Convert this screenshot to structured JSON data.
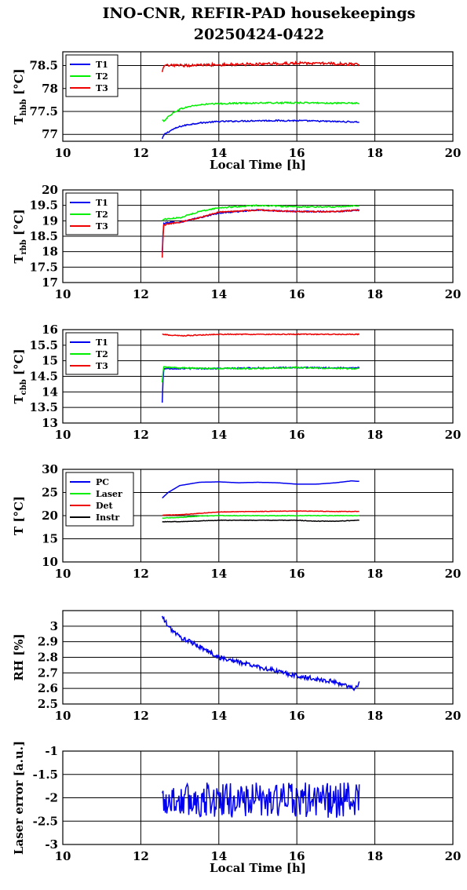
{
  "title": {
    "line1": "INO-CNR, REFIR-PAD housekeepings",
    "line2": "20250424-0422"
  },
  "colors": {
    "blue": "#0000ee",
    "green": "#00ee00",
    "red": "#ee0000",
    "black": "#000000"
  },
  "chart_data": [
    {
      "id": "hbb",
      "type": "line",
      "ylabel": "T",
      "ylabel_sub": "hbb",
      "ylabel_unit": "[°C]",
      "xlabel": "Local Time [h]",
      "xlim": [
        10,
        20
      ],
      "ylim": [
        76.85,
        78.8
      ],
      "xticks": [
        "10",
        "12",
        "14",
        "16",
        "18",
        "20"
      ],
      "yticks": [
        {
          "v": 77,
          "t": "77"
        },
        {
          "v": 77.5,
          "t": "77.5"
        },
        {
          "v": 78,
          "t": "78"
        },
        {
          "v": 78.5,
          "t": "78.5"
        }
      ],
      "legend": "top-left",
      "grid": true,
      "series": [
        {
          "name": "T1",
          "color": "blue",
          "pts": [
            [
              12.55,
              76.9
            ],
            [
              12.6,
              77.0
            ],
            [
              12.7,
              77.05
            ],
            [
              12.8,
              77.1
            ],
            [
              13.0,
              77.17
            ],
            [
              13.2,
              77.21
            ],
            [
              13.5,
              77.25
            ],
            [
              14.0,
              77.28
            ],
            [
              15.0,
              77.3
            ],
            [
              16.0,
              77.3
            ],
            [
              17.0,
              77.28
            ],
            [
              17.6,
              77.27
            ]
          ],
          "noise": 0.015
        },
        {
          "name": "T2",
          "color": "green",
          "pts": [
            [
              12.55,
              77.3
            ],
            [
              12.6,
              77.3
            ],
            [
              12.7,
              77.38
            ],
            [
              12.8,
              77.45
            ],
            [
              13.0,
              77.55
            ],
            [
              13.3,
              77.62
            ],
            [
              13.7,
              77.66
            ],
            [
              14.5,
              77.68
            ],
            [
              16.0,
              77.69
            ],
            [
              17.0,
              77.68
            ],
            [
              17.6,
              77.68
            ]
          ],
          "noise": 0.015
        },
        {
          "name": "T3",
          "color": "red",
          "pts": [
            [
              12.55,
              78.35
            ],
            [
              12.6,
              78.5
            ],
            [
              13.0,
              78.5
            ],
            [
              14.0,
              78.52
            ],
            [
              15.0,
              78.53
            ],
            [
              16.0,
              78.55
            ],
            [
              17.0,
              78.54
            ],
            [
              17.6,
              78.52
            ]
          ],
          "noise": 0.03
        }
      ]
    },
    {
      "id": "rbb",
      "type": "line",
      "ylabel": "T",
      "ylabel_sub": "rbb",
      "ylabel_unit": "[°C]",
      "xlabel": "",
      "xlim": [
        10,
        20
      ],
      "ylim": [
        17,
        20
      ],
      "xticks": [
        "10",
        "12",
        "14",
        "16",
        "18",
        "20"
      ],
      "yticks": [
        {
          "v": 17,
          "t": "17"
        },
        {
          "v": 17.5,
          "t": "17.5"
        },
        {
          "v": 18,
          "t": "18"
        },
        {
          "v": 18.5,
          "t": "18.5"
        },
        {
          "v": 19,
          "t": "19"
        },
        {
          "v": 19.5,
          "t": "19.5"
        },
        {
          "v": 20,
          "t": "20"
        }
      ],
      "legend": "top-left",
      "grid": true,
      "series": [
        {
          "name": "T1",
          "color": "blue",
          "pts": [
            [
              12.55,
              17.95
            ],
            [
              12.58,
              18.9
            ],
            [
              12.7,
              18.95
            ],
            [
              13.0,
              18.95
            ],
            [
              13.5,
              19.1
            ],
            [
              14.0,
              19.25
            ],
            [
              15.0,
              19.35
            ],
            [
              16.0,
              19.3
            ],
            [
              17.0,
              19.3
            ],
            [
              17.6,
              19.35
            ]
          ],
          "noise": 0.02
        },
        {
          "name": "T2",
          "color": "green",
          "pts": [
            [
              12.55,
              19.0
            ],
            [
              12.58,
              19.05
            ],
            [
              13.0,
              19.1
            ],
            [
              13.5,
              19.3
            ],
            [
              14.0,
              19.42
            ],
            [
              15.0,
              19.5
            ],
            [
              16.0,
              19.45
            ],
            [
              17.0,
              19.45
            ],
            [
              17.6,
              19.5
            ]
          ],
          "noise": 0.02
        },
        {
          "name": "T3",
          "color": "red",
          "pts": [
            [
              12.55,
              17.8
            ],
            [
              12.58,
              18.85
            ],
            [
              12.7,
              18.9
            ],
            [
              13.0,
              18.95
            ],
            [
              13.5,
              19.1
            ],
            [
              14.0,
              19.28
            ],
            [
              15.0,
              19.35
            ],
            [
              16.0,
              19.3
            ],
            [
              17.0,
              19.3
            ],
            [
              17.6,
              19.35
            ]
          ],
          "noise": 0.02
        }
      ]
    },
    {
      "id": "cbb",
      "type": "line",
      "ylabel": "T",
      "ylabel_sub": "cbb",
      "ylabel_unit": "[°C]",
      "xlabel": "",
      "xlim": [
        10,
        20
      ],
      "ylim": [
        13,
        16
      ],
      "xticks": [
        "10",
        "12",
        "14",
        "16",
        "18",
        "20"
      ],
      "yticks": [
        {
          "v": 13,
          "t": "13"
        },
        {
          "v": 13.5,
          "t": "13.5"
        },
        {
          "v": 14,
          "t": "14"
        },
        {
          "v": 14.5,
          "t": "14.5"
        },
        {
          "v": 15,
          "t": "15"
        },
        {
          "v": 15.5,
          "t": "15.5"
        },
        {
          "v": 16,
          "t": "16"
        }
      ],
      "legend": "top-left",
      "grid": true,
      "series": [
        {
          "name": "T1",
          "color": "blue",
          "pts": [
            [
              12.55,
              13.65
            ],
            [
              12.58,
              14.75
            ],
            [
              13.0,
              14.75
            ],
            [
              14.0,
              14.75
            ],
            [
              15.0,
              14.77
            ],
            [
              16.0,
              14.78
            ],
            [
              17.0,
              14.77
            ],
            [
              17.6,
              14.78
            ]
          ],
          "noise": 0.02
        },
        {
          "name": "T2",
          "color": "green",
          "pts": [
            [
              12.55,
              14.3
            ],
            [
              12.58,
              14.8
            ],
            [
              13.0,
              14.77
            ],
            [
              14.0,
              14.75
            ],
            [
              15.0,
              14.75
            ],
            [
              16.0,
              14.78
            ],
            [
              17.0,
              14.75
            ],
            [
              17.6,
              14.75
            ]
          ],
          "noise": 0.02
        },
        {
          "name": "T3",
          "color": "red",
          "pts": [
            [
              12.55,
              15.85
            ],
            [
              13.0,
              15.8
            ],
            [
              14.0,
              15.85
            ],
            [
              15.0,
              15.85
            ],
            [
              16.0,
              15.85
            ],
            [
              17.0,
              15.85
            ],
            [
              17.6,
              15.85
            ]
          ],
          "noise": 0.015
        }
      ]
    },
    {
      "id": "temps",
      "type": "line",
      "ylabel": "T [°C]",
      "ylabel_sub": "",
      "ylabel_unit": "",
      "xlabel": "",
      "xlim": [
        10,
        20
      ],
      "ylim": [
        10,
        30
      ],
      "xticks": [
        "10",
        "12",
        "14",
        "16",
        "18",
        "20"
      ],
      "yticks": [
        {
          "v": 10,
          "t": "10"
        },
        {
          "v": 15,
          "t": "15"
        },
        {
          "v": 20,
          "t": "20"
        },
        {
          "v": 25,
          "t": "25"
        },
        {
          "v": 30,
          "t": "30"
        }
      ],
      "legend": "top-left",
      "grid": true,
      "series": [
        {
          "name": "PC",
          "color": "blue",
          "pts": [
            [
              12.55,
              23.8
            ],
            [
              12.7,
              25.0
            ],
            [
              13.0,
              26.5
            ],
            [
              13.5,
              27.2
            ],
            [
              14.0,
              27.3
            ],
            [
              14.5,
              27.1
            ],
            [
              15.0,
              27.2
            ],
            [
              15.5,
              27.1
            ],
            [
              16.0,
              26.8
            ],
            [
              16.5,
              26.8
            ],
            [
              17.0,
              27.1
            ],
            [
              17.4,
              27.5
            ],
            [
              17.6,
              27.4
            ]
          ],
          "noise": 0.0
        },
        {
          "name": "Laser",
          "color": "green",
          "pts": [
            [
              12.55,
              19.5
            ],
            [
              13.0,
              19.6
            ],
            [
              13.5,
              19.9
            ],
            [
              14.0,
              20.0
            ],
            [
              15.0,
              20.0
            ],
            [
              16.0,
              20.0
            ],
            [
              17.0,
              20.0
            ],
            [
              17.6,
              20.0
            ]
          ],
          "noise": 0.05
        },
        {
          "name": "Det",
          "color": "red",
          "pts": [
            [
              12.55,
              20.1
            ],
            [
              13.0,
              20.2
            ],
            [
              13.5,
              20.5
            ],
            [
              14.0,
              20.8
            ],
            [
              15.0,
              20.9
            ],
            [
              16.0,
              21.0
            ],
            [
              17.0,
              20.9
            ],
            [
              17.6,
              20.9
            ]
          ],
          "noise": 0.05
        },
        {
          "name": "Instr",
          "color": "black",
          "pts": [
            [
              12.55,
              18.7
            ],
            [
              13.0,
              18.7
            ],
            [
              14.0,
              19.0
            ],
            [
              15.0,
              19.0
            ],
            [
              16.0,
              19.0
            ],
            [
              16.5,
              18.8
            ],
            [
              17.0,
              18.8
            ],
            [
              17.6,
              19.0
            ]
          ],
          "noise": 0.05
        }
      ]
    },
    {
      "id": "rh",
      "type": "line",
      "ylabel": "RH [%]",
      "ylabel_sub": "",
      "ylabel_unit": "",
      "xlabel": "",
      "xlim": [
        10,
        20
      ],
      "ylim": [
        2.5,
        3.1
      ],
      "xticks": [
        "10",
        "12",
        "14",
        "16",
        "18",
        "20"
      ],
      "yticks": [
        {
          "v": 2.5,
          "t": "2.5"
        },
        {
          "v": 2.6,
          "t": "2.6"
        },
        {
          "v": 2.7,
          "t": "2.7"
        },
        {
          "v": 2.8,
          "t": "2.8"
        },
        {
          "v": 2.9,
          "t": "2.9"
        },
        {
          "v": 3.0,
          "t": "3"
        }
      ],
      "legend": "none",
      "grid": true,
      "series": [
        {
          "name": "",
          "color": "blue",
          "pts": [
            [
              12.55,
              3.06
            ],
            [
              12.7,
              3.0
            ],
            [
              13.0,
              2.93
            ],
            [
              13.5,
              2.87
            ],
            [
              14.0,
              2.8
            ],
            [
              14.5,
              2.77
            ],
            [
              15.0,
              2.74
            ],
            [
              15.5,
              2.71
            ],
            [
              16.0,
              2.68
            ],
            [
              16.5,
              2.66
            ],
            [
              17.0,
              2.64
            ],
            [
              17.5,
              2.6
            ],
            [
              17.6,
              2.64
            ]
          ],
          "noise": 0.015
        }
      ]
    },
    {
      "id": "laser",
      "type": "line",
      "ylabel": "Laser error [a.u.]",
      "ylabel_sub": "",
      "ylabel_unit": "",
      "xlabel": "Local Time [h]",
      "xlim": [
        10,
        20
      ],
      "ylim": [
        -3,
        -1
      ],
      "xticks": [
        "10",
        "12",
        "14",
        "16",
        "18",
        "20"
      ],
      "yticks": [
        {
          "v": -3,
          "t": "-3"
        },
        {
          "v": -2.5,
          "t": "-2.5"
        },
        {
          "v": -2,
          "t": "-2"
        },
        {
          "v": -1.5,
          "t": "-1.5"
        },
        {
          "v": -1,
          "t": "-1"
        }
      ],
      "legend": "none",
      "grid": true,
      "series": [
        {
          "name": "",
          "color": "blue",
          "pts": [
            [
              12.55,
              -2.05
            ],
            [
              17.6,
              -2.05
            ]
          ],
          "noise": 0.0,
          "osc": 0.38
        }
      ]
    }
  ]
}
